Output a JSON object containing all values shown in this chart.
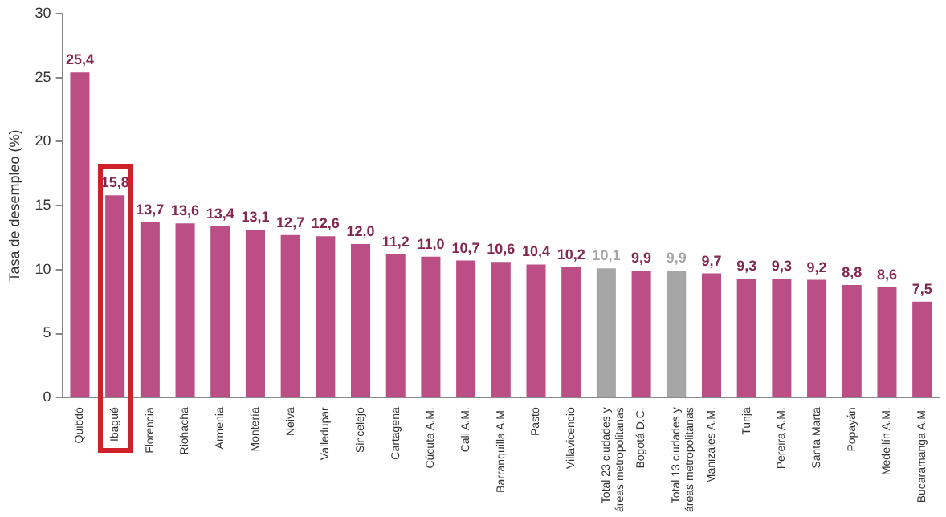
{
  "chart_data": {
    "type": "bar",
    "ylabel": "Tasa de desempleo (%)",
    "categories": [
      "Quibdó",
      "Ibagué",
      "Florencia",
      "Riohacha",
      "Armenia",
      "Montería",
      "Neiva",
      "Valledupar",
      "Sincelejo",
      "Cartagena",
      "Cúcuta A.M.",
      "Cali A.M.",
      "Barranquilla A.M.",
      "Pasto",
      "Villavicencio",
      "Total 23 ciudades y áreas metropolitanas",
      "Bogotá D.C.",
      "Total 13 ciudades y áreas metropolitanas",
      "Manizales A.M.",
      "Tunja",
      "Pereira A.M.",
      "Santa Marta",
      "Popayán",
      "Medellín A.M.",
      "Bucaramanga A.M."
    ],
    "values": [
      25.4,
      15.8,
      13.7,
      13.6,
      13.4,
      13.1,
      12.7,
      12.6,
      12.0,
      11.2,
      11.0,
      10.7,
      10.6,
      10.4,
      10.2,
      10.1,
      9.9,
      9.9,
      9.7,
      9.3,
      9.3,
      9.2,
      8.8,
      8.6,
      7.5
    ],
    "value_labels": [
      "25,4",
      "15,8",
      "13,7",
      "13,6",
      "13,4",
      "13,1",
      "12,7",
      "12,6",
      "12,0",
      "11,2",
      "11,0",
      "10,7",
      "10,6",
      "10,4",
      "10,2",
      "10,1",
      "9,9",
      "9,9",
      "9,7",
      "9,3",
      "9,3",
      "9,2",
      "8,8",
      "8,6",
      "7,5"
    ],
    "colors": [
      "#bb4f85",
      "#bb4f85",
      "#bb4f85",
      "#bb4f85",
      "#bb4f85",
      "#bb4f85",
      "#bb4f85",
      "#bb4f85",
      "#bb4f85",
      "#bb4f85",
      "#bb4f85",
      "#bb4f85",
      "#bb4f85",
      "#bb4f85",
      "#bb4f85",
      "#a6a6a6",
      "#bb4f85",
      "#a6a6a6",
      "#bb4f85",
      "#bb4f85",
      "#bb4f85",
      "#bb4f85",
      "#bb4f85",
      "#bb4f85",
      "#bb4f85"
    ],
    "ylim": [
      0,
      30
    ],
    "yticks": [
      0,
      5,
      10,
      15,
      20,
      25,
      30
    ],
    "grid": false,
    "legend": false
  }
}
